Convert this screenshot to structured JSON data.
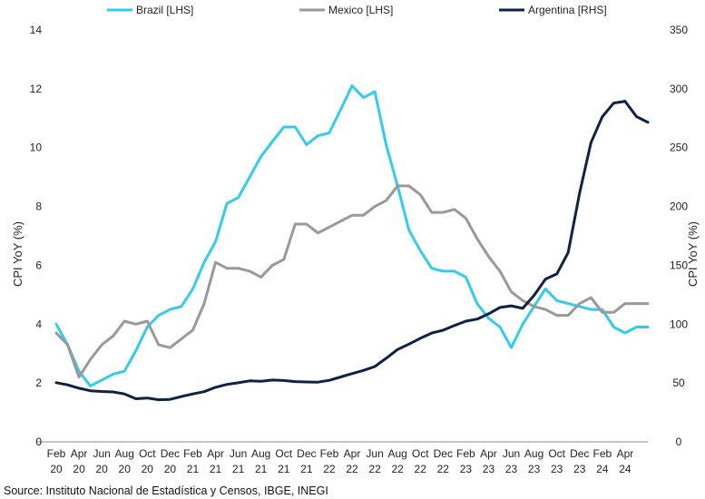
{
  "chart_data": {
    "type": "line",
    "source": "Source: Instituto Nacional de Estadística y Censos, IBGE, INEGI",
    "ylabel_left": "CPI YoY (%)",
    "ylabel_right": "CPI YoY (%)",
    "ylim_left": [
      0,
      14
    ],
    "ylim_right": [
      0,
      350
    ],
    "yticks_left": [
      "0",
      "2",
      "4",
      "6",
      "8",
      "10",
      "12",
      "14"
    ],
    "yticks_right": [
      "0",
      "50",
      "100",
      "150",
      "200",
      "250",
      "300",
      "350"
    ],
    "grid": false,
    "legend_position": "top",
    "x_tick_labels": [
      [
        "Feb",
        "20"
      ],
      [
        "Apr",
        "20"
      ],
      [
        "Jun",
        "20"
      ],
      [
        "Aug",
        "20"
      ],
      [
        "Oct",
        "20"
      ],
      [
        "Dec",
        "20"
      ],
      [
        "Feb",
        "21"
      ],
      [
        "Apr",
        "21"
      ],
      [
        "Jun",
        "21"
      ],
      [
        "Aug",
        "21"
      ],
      [
        "Oct",
        "21"
      ],
      [
        "Dec",
        "21"
      ],
      [
        "Feb",
        "22"
      ],
      [
        "Apr",
        "22"
      ],
      [
        "Jun",
        "22"
      ],
      [
        "Aug",
        "22"
      ],
      [
        "Oct",
        "22"
      ],
      [
        "Dec",
        "22"
      ],
      [
        "Feb",
        "23"
      ],
      [
        "Apr",
        "23"
      ],
      [
        "Jun",
        "23"
      ],
      [
        "Aug",
        "23"
      ],
      [
        "Oct",
        "23"
      ],
      [
        "Dec",
        "23"
      ],
      [
        "Feb",
        "24"
      ],
      [
        "Apr",
        "24"
      ]
    ],
    "x": [
      "2020-01",
      "2020-02",
      "2020-03",
      "2020-04",
      "2020-05",
      "2020-06",
      "2020-07",
      "2020-08",
      "2020-09",
      "2020-10",
      "2020-11",
      "2020-12",
      "2021-01",
      "2021-02",
      "2021-03",
      "2021-04",
      "2021-05",
      "2021-06",
      "2021-07",
      "2021-08",
      "2021-09",
      "2021-10",
      "2021-11",
      "2021-12",
      "2022-01",
      "2022-02",
      "2022-03",
      "2022-04",
      "2022-05",
      "2022-06",
      "2022-07",
      "2022-08",
      "2022-09",
      "2022-10",
      "2022-11",
      "2022-12",
      "2023-01",
      "2023-02",
      "2023-03",
      "2023-04",
      "2023-05",
      "2023-06",
      "2023-07",
      "2023-08",
      "2023-09",
      "2023-10",
      "2023-11",
      "2023-12",
      "2024-01",
      "2024-02",
      "2024-03",
      "2024-04",
      "2024-05",
      "2024-06"
    ],
    "series": [
      {
        "name": "Brazil [LHS]",
        "axis": "left",
        "color": "#33ccee",
        "values": [
          4.2,
          4.0,
          3.3,
          2.4,
          1.9,
          2.1,
          2.3,
          2.4,
          3.1,
          3.9,
          4.3,
          4.5,
          4.6,
          5.2,
          6.1,
          6.8,
          8.1,
          8.3,
          9.0,
          9.7,
          10.2,
          10.7,
          10.7,
          10.1,
          10.4,
          10.5,
          11.3,
          12.1,
          11.7,
          11.9,
          10.1,
          8.7,
          7.2,
          6.5,
          5.9,
          5.8,
          5.8,
          5.6,
          4.7,
          4.2,
          3.9,
          3.2,
          4.0,
          4.6,
          5.2,
          4.8,
          4.7,
          4.6,
          4.5,
          4.5,
          3.9,
          3.7,
          3.9,
          3.9
        ]
      },
      {
        "name": "Mexico [LHS]",
        "axis": "left",
        "color": "#999999",
        "values": [
          3.2,
          3.7,
          3.3,
          2.2,
          2.8,
          3.3,
          3.6,
          4.1,
          4.0,
          4.1,
          3.3,
          3.2,
          3.5,
          3.8,
          4.7,
          6.1,
          5.9,
          5.9,
          5.8,
          5.6,
          6.0,
          6.2,
          7.4,
          7.4,
          7.1,
          7.3,
          7.5,
          7.7,
          7.7,
          8.0,
          8.2,
          8.7,
          8.7,
          8.4,
          7.8,
          7.8,
          7.9,
          7.6,
          6.9,
          6.3,
          5.8,
          5.1,
          4.8,
          4.6,
          4.5,
          4.3,
          4.3,
          4.7,
          4.9,
          4.4,
          4.4,
          4.7,
          4.7,
          4.7
        ]
      },
      {
        "name": "Argentina [RHS]",
        "axis": "right",
        "color": "#0d2244",
        "values": [
          52.9,
          50.3,
          48.4,
          45.6,
          43.4,
          42.8,
          42.4,
          40.7,
          36.6,
          37.2,
          35.8,
          36.1,
          38.5,
          40.7,
          42.6,
          46.3,
          48.8,
          50.2,
          51.8,
          51.4,
          52.5,
          52.1,
          51.2,
          50.9,
          50.7,
          52.3,
          55.1,
          58.0,
          60.7,
          64.0,
          71.0,
          78.5,
          83.0,
          88.0,
          92.4,
          94.8,
          98.8,
          102.5,
          104.3,
          108.8,
          114.2,
          115.6,
          113.4,
          124.4,
          138.3,
          142.7,
          160.9,
          211.4,
          254.2,
          276.2,
          287.9,
          289.4,
          276.4,
          271.5
        ]
      }
    ]
  }
}
